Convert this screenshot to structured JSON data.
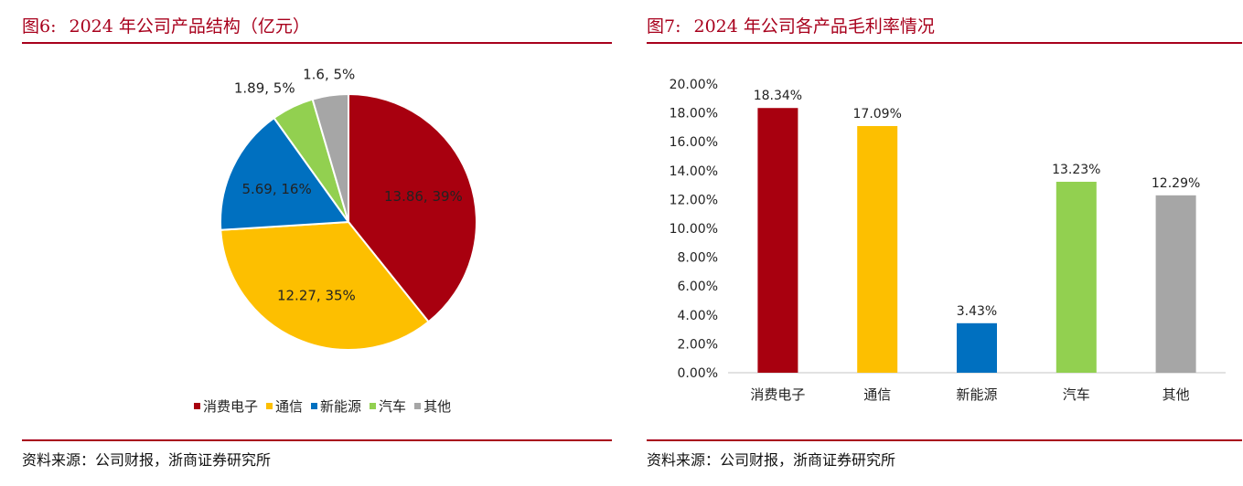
{
  "left": {
    "title_num": "图6:",
    "title_text": "2024 年公司产品结构（亿元）",
    "source": "资料来源：公司财报，浙商证券研究所"
  },
  "right": {
    "title_num": "图7:",
    "title_text": "2024 年公司各产品毛利率情况",
    "source": "资料来源：公司财报，浙商证券研究所"
  },
  "chart_data": [
    {
      "type": "pie",
      "title": "2024 年公司产品结构（亿元）",
      "categories": [
        "消费电子",
        "通信",
        "新能源",
        "汽车",
        "其他"
      ],
      "values": [
        13.86,
        12.27,
        5.69,
        1.89,
        1.6
      ],
      "percent_labels": [
        "39%",
        "35%",
        "16%",
        "5%",
        "5%"
      ],
      "data_labels": [
        "13.86, 39%",
        "12.27, 35%",
        "5.69, 16%",
        "1.89, 5%",
        "1.6, 5%"
      ],
      "colors": [
        "#a8000f",
        "#fdbf00",
        "#0070c0",
        "#92d050",
        "#a6a6a6"
      ],
      "legend": "bottom"
    },
    {
      "type": "bar",
      "title": "2024 年公司各产品毛利率情况",
      "categories": [
        "消费电子",
        "通信",
        "新能源",
        "汽车",
        "其他"
      ],
      "values": [
        18.34,
        17.09,
        3.43,
        13.23,
        12.29
      ],
      "data_labels": [
        "18.34%",
        "17.09%",
        "3.43%",
        "13.23%",
        "12.29%"
      ],
      "colors": [
        "#a8000f",
        "#fdbf00",
        "#0070c0",
        "#92d050",
        "#a6a6a6"
      ],
      "ylim": [
        0,
        20
      ],
      "yticks": [
        "0.00%",
        "2.00%",
        "4.00%",
        "6.00%",
        "8.00%",
        "10.00%",
        "12.00%",
        "14.00%",
        "16.00%",
        "18.00%",
        "20.00%"
      ],
      "grid": false,
      "legend": "none"
    }
  ]
}
